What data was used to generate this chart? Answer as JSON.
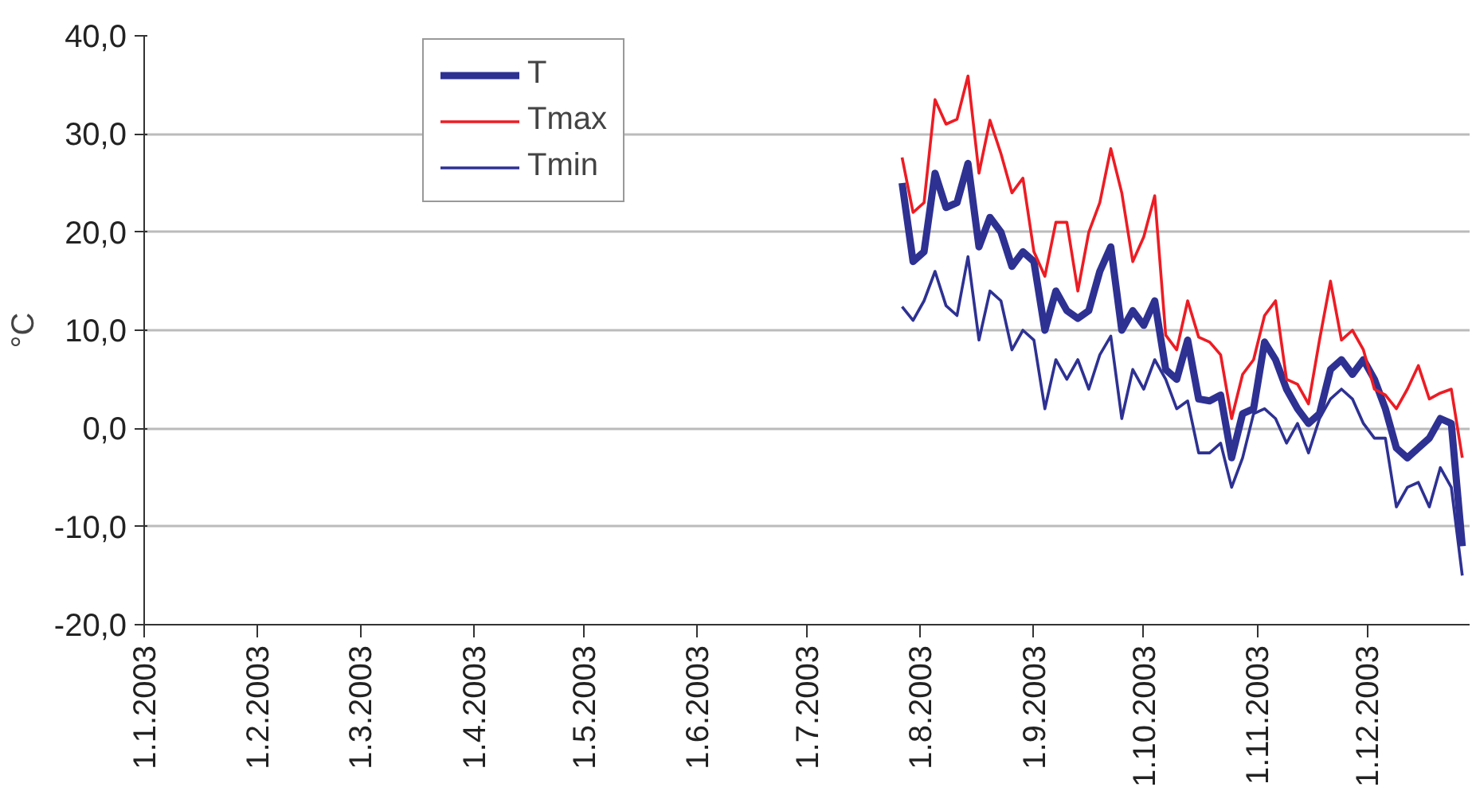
{
  "chart_data": {
    "type": "line",
    "ylabel": "°C",
    "x": [
      "2003-07-27",
      "2003-07-30",
      "2003-08-02",
      "2003-08-05",
      "2003-08-08",
      "2003-08-11",
      "2003-08-14",
      "2003-08-17",
      "2003-08-20",
      "2003-08-23",
      "2003-08-26",
      "2003-08-29",
      "2003-09-01",
      "2003-09-04",
      "2003-09-07",
      "2003-09-10",
      "2003-09-13",
      "2003-09-16",
      "2003-09-19",
      "2003-09-22",
      "2003-09-25",
      "2003-09-28",
      "2003-10-01",
      "2003-10-04",
      "2003-10-07",
      "2003-10-10",
      "2003-10-13",
      "2003-10-16",
      "2003-10-19",
      "2003-10-22",
      "2003-10-25",
      "2003-10-28",
      "2003-10-31",
      "2003-11-03",
      "2003-11-06",
      "2003-11-09",
      "2003-11-12",
      "2003-11-15",
      "2003-11-18",
      "2003-11-21",
      "2003-11-24",
      "2003-11-27",
      "2003-11-30",
      "2003-12-03",
      "2003-12-06",
      "2003-12-09",
      "2003-12-12",
      "2003-12-15",
      "2003-12-18",
      "2003-12-21",
      "2003-12-24",
      "2003-12-27"
    ],
    "series": [
      {
        "name": "T",
        "color": "#2e3192",
        "values": [
          25,
          17,
          18,
          26,
          22.5,
          23,
          27,
          18.5,
          21.5,
          20,
          16.5,
          18,
          17,
          10,
          14,
          12,
          11.2,
          12,
          16,
          18.5,
          10,
          12,
          10.5,
          13,
          6,
          5,
          9,
          3,
          2.8,
          3.4,
          -3,
          1.5,
          2,
          8.8,
          7,
          4,
          2,
          0.5,
          1.5,
          6,
          7,
          5.5,
          7,
          5,
          2,
          -2,
          -3,
          -2,
          -1,
          1,
          0.5,
          -12
        ]
      },
      {
        "name": "Tmax",
        "color": "#ed1c24",
        "values": [
          27.6,
          22,
          23,
          33.5,
          31,
          31.5,
          35.9,
          26,
          31.4,
          28,
          24,
          25.5,
          18,
          15.5,
          21,
          21,
          14,
          20,
          23,
          28.5,
          24,
          17,
          19.5,
          23.7,
          9.5,
          8,
          13,
          9.3,
          8.8,
          7.5,
          1,
          5.5,
          7,
          11.5,
          13,
          5,
          4.5,
          2.5,
          9,
          15,
          9,
          10,
          8,
          4,
          3.4,
          2,
          4,
          6.4,
          3,
          3.6,
          4,
          -3
        ]
      },
      {
        "name": "Tmin",
        "color": "#2e3192",
        "values": [
          12.4,
          11,
          13,
          16,
          12.5,
          11.5,
          17.5,
          9,
          14,
          13,
          8,
          10,
          9,
          2,
          7,
          5,
          7,
          4,
          7.5,
          9.4,
          1,
          6,
          4,
          7,
          5,
          2,
          2.8,
          -2.5,
          -2.5,
          -1.5,
          -6,
          -3,
          1.5,
          2,
          1,
          -1.5,
          0.5,
          -2.5,
          1,
          3,
          4,
          3,
          0.5,
          -1,
          -1,
          -8,
          -6,
          -5.5,
          -8,
          -4,
          -6,
          -15
        ]
      }
    ],
    "xlim": [
      "2003-01-01",
      "2003-12-29"
    ],
    "xticks": [
      {
        "value": "2003-01-01",
        "label": "1.1.2003"
      },
      {
        "value": "2003-02-01",
        "label": "1.2.2003"
      },
      {
        "value": "2003-03-01",
        "label": "1.3.2003"
      },
      {
        "value": "2003-04-01",
        "label": "1.4.2003"
      },
      {
        "value": "2003-05-01",
        "label": "1.5.2003"
      },
      {
        "value": "2003-06-01",
        "label": "1.6.2003"
      },
      {
        "value": "2003-07-01",
        "label": "1.7.2003"
      },
      {
        "value": "2003-08-01",
        "label": "1.8.2003"
      },
      {
        "value": "2003-09-01",
        "label": "1.9.2003"
      },
      {
        "value": "2003-10-01",
        "label": "1.10.2003"
      },
      {
        "value": "2003-11-01",
        "label": "1.11.2003"
      },
      {
        "value": "2003-12-01",
        "label": "1.12.2003"
      }
    ],
    "ylim": [
      -20,
      40
    ],
    "yticks": [
      {
        "value": -20,
        "label": "-20,0"
      },
      {
        "value": -10,
        "label": "-10,0"
      },
      {
        "value": 0,
        "label": "0,0"
      },
      {
        "value": 10,
        "label": "10,0"
      },
      {
        "value": 20,
        "label": "20,0"
      },
      {
        "value": 30,
        "label": "30,0"
      },
      {
        "value": 40,
        "label": "40,0"
      }
    ],
    "grid": "y",
    "legend": "top left",
    "marker": "none",
    "line_style": "solid"
  }
}
